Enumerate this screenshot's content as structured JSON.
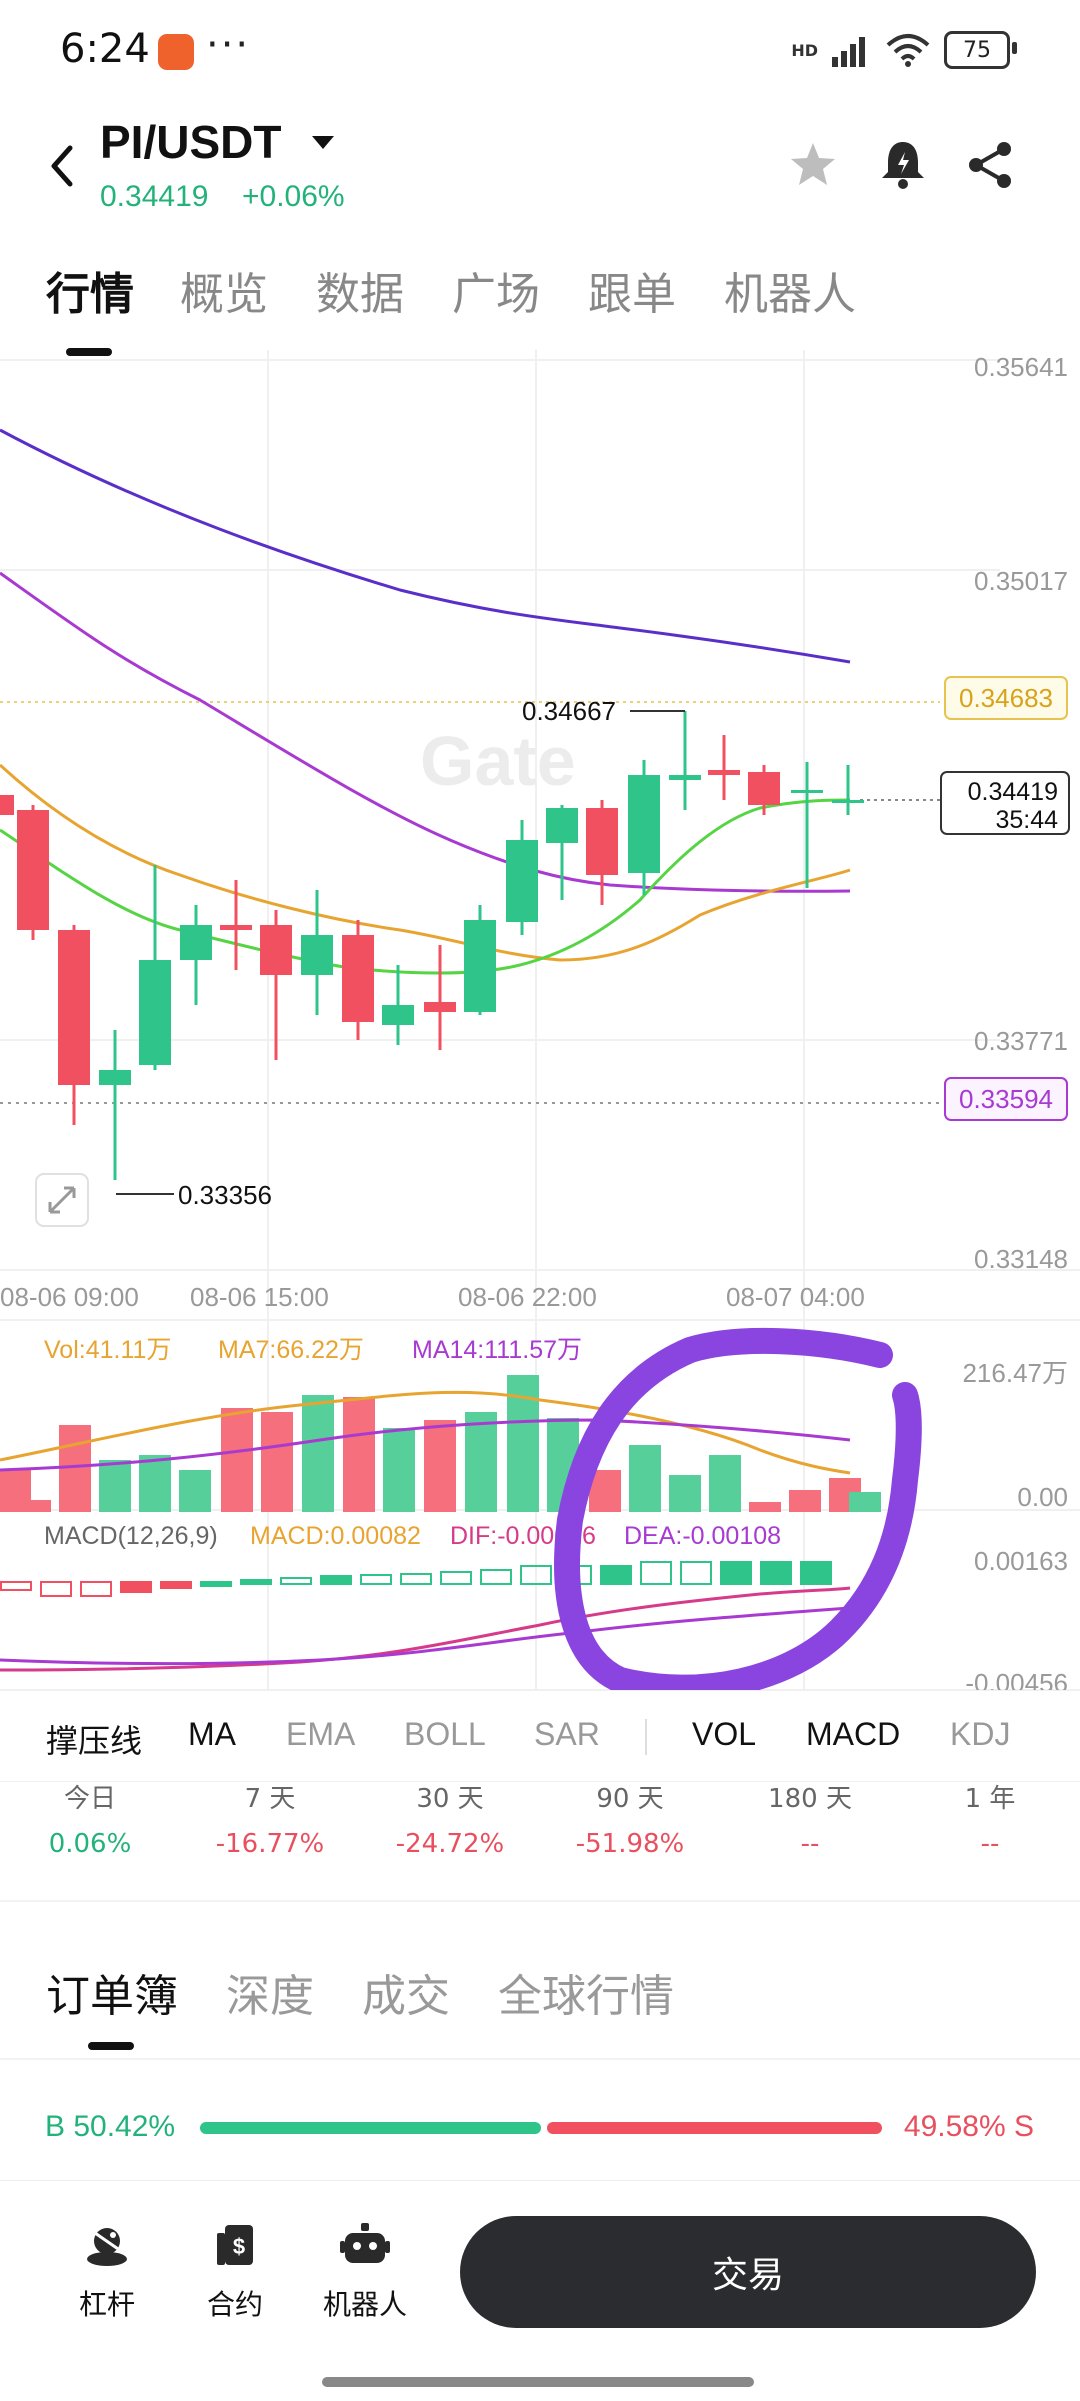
{
  "status_bar": {
    "time": "6:24",
    "more": "···",
    "network": "HD",
    "battery": "75"
  },
  "header": {
    "pair": "PI/USDT",
    "price": "0.34419",
    "change": "+0.06%"
  },
  "tabs": [
    "行情",
    "概览",
    "数据",
    "广场",
    "跟单",
    "机器人"
  ],
  "chart": {
    "y_labels": [
      "0.35641",
      "0.35017",
      "0.33771",
      "0.33148"
    ],
    "price_tag_yellow": "0.34683",
    "price_tag_purple": "0.33594",
    "current_price_tag": "0.34419",
    "countdown": "35:44",
    "high_label": "0.34667",
    "low_label": "0.33356",
    "x_labels": [
      "08-06 09:00",
      "08-06 15:00",
      "08-06 22:00",
      "08-07 04:00"
    ],
    "watermark": "Gate",
    "vol_legend": {
      "vol": "Vol:41.11万",
      "ma7": "MA7:66.22万",
      "ma14": "MA14:111.57万"
    },
    "vol_scale": [
      "216.47万",
      "0.00"
    ],
    "macd_legend": {
      "params": "MACD(12,26,9)",
      "macd": "MACD:0.00082",
      "dif": "DIF:-0.00026",
      "dea": "DEA:-0.00108"
    },
    "macd_scale": [
      "0.00163",
      "-0.00456"
    ],
    "colors": {
      "up": "#2ec48a",
      "down": "#f0505f",
      "ma_fast": "#55d444",
      "ma_mid": "#e8a431",
      "ma_slow": "#a83ad1",
      "ma_long": "#5a2fc9",
      "annotation": "#8a44e0"
    }
  },
  "indicators": [
    "撑压线",
    "MA",
    "EMA",
    "BOLL",
    "SAR",
    "VOL",
    "MACD",
    "KDJ"
  ],
  "periods": [
    {
      "label": "今日",
      "value": "0.06%",
      "color": "#24b27b"
    },
    {
      "label": "7 天",
      "value": "-16.77%",
      "color": "#e8505f"
    },
    {
      "label": "30 天",
      "value": "-24.72%",
      "color": "#e8505f"
    },
    {
      "label": "90 天",
      "value": "-51.98%",
      "color": "#e8505f"
    },
    {
      "label": "180 天",
      "value": "--",
      "color": "#e8505f"
    },
    {
      "label": "1 年",
      "value": "--",
      "color": "#e8505f"
    }
  ],
  "orderbook_tabs": [
    "订单簿",
    "深度",
    "成交",
    "全球行情"
  ],
  "ratio": {
    "buy": "B 50.42%",
    "sell": "49.58% S",
    "buy_fraction": 0.5042
  },
  "bottom_nav": {
    "items": [
      "杠杆",
      "合约",
      "机器人"
    ],
    "trade": "交易"
  }
}
